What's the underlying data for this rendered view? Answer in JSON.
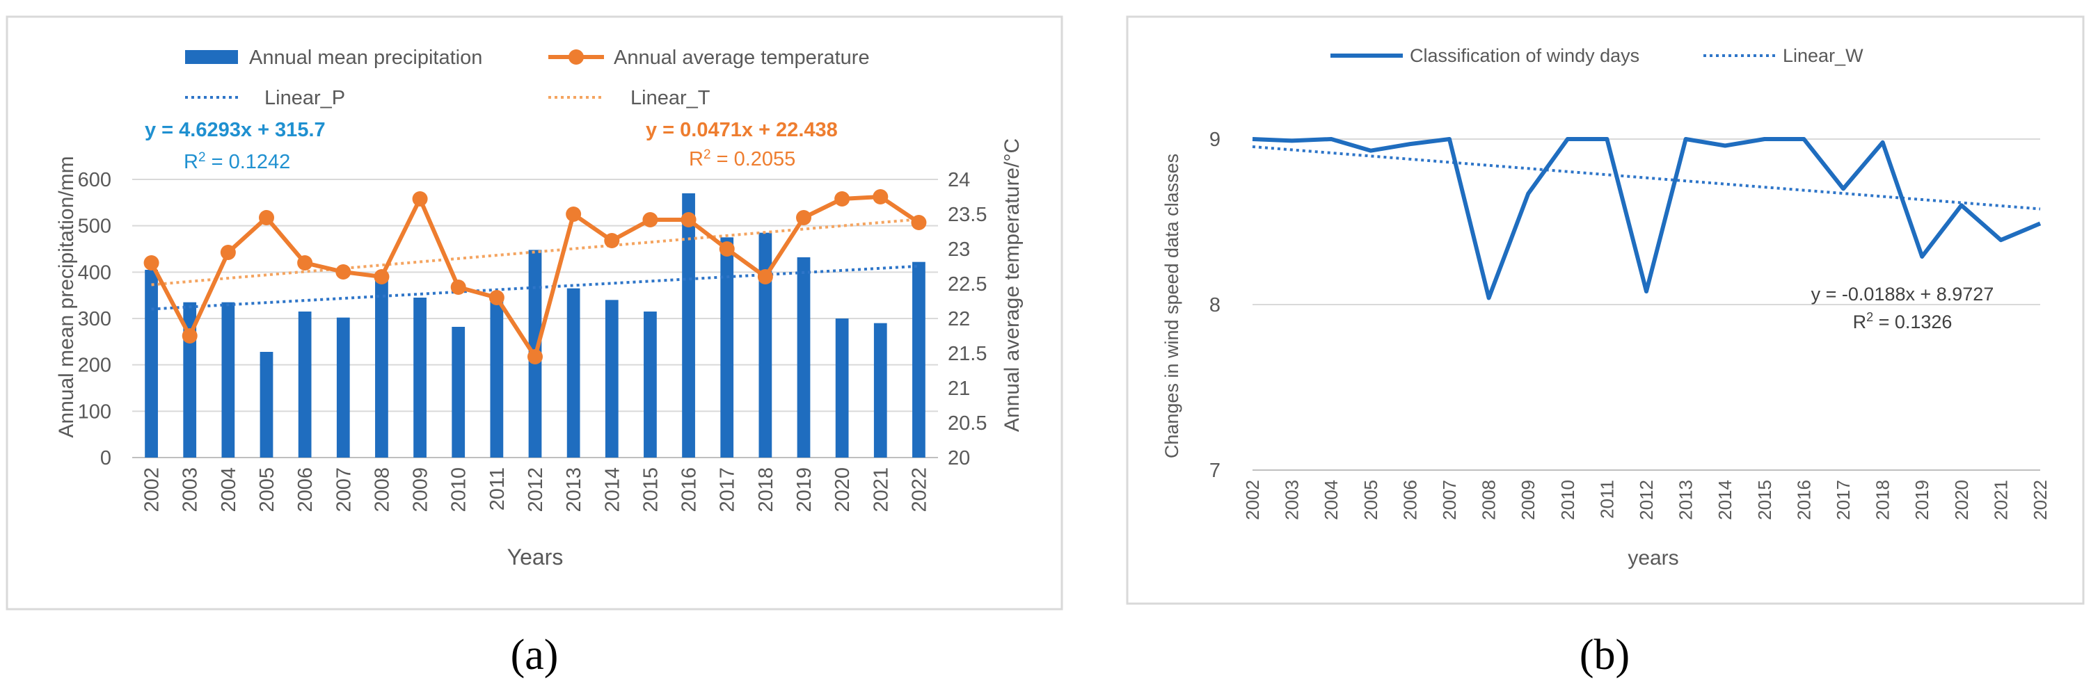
{
  "chart_data": [
    {
      "panel_label": "(a)",
      "type": "bar",
      "x": [
        "2002",
        "2003",
        "2004",
        "2005",
        "2006",
        "2007",
        "2008",
        "2009",
        "2010",
        "2011",
        "2012",
        "2013",
        "2014",
        "2015",
        "2016",
        "2017",
        "2018",
        "2019",
        "2020",
        "2021",
        "2022"
      ],
      "xlabel": "Years",
      "ylabel_left": "Annual mean precipitation/mm",
      "ylabel_right": "Annual average temperature/°C",
      "ylim_left": [
        0,
        600
      ],
      "yticks_left": [
        "0",
        "100",
        "200",
        "300",
        "400",
        "500",
        "600"
      ],
      "ylim_right": [
        20,
        24
      ],
      "yticks_right": [
        "20",
        "20.5",
        "21",
        "21.5",
        "22",
        "22.5",
        "23",
        "23.5",
        "24"
      ],
      "grid": true,
      "legend_position": "top",
      "series": [
        {
          "name": "Annual mean precipitation",
          "type": "bar",
          "axis": "left",
          "color": "#1f6dbf",
          "values": [
            405,
            335,
            335,
            228,
            315,
            302,
            385,
            345,
            282,
            350,
            448,
            365,
            340,
            315,
            570,
            475,
            485,
            432,
            300,
            290,
            422
          ]
        },
        {
          "name": "Annual average temperature",
          "type": "line",
          "axis": "right",
          "color": "#ee7d2f",
          "values": [
            22.8,
            21.75,
            22.95,
            23.45,
            22.8,
            22.67,
            22.6,
            23.72,
            22.45,
            22.3,
            21.45,
            23.5,
            23.12,
            23.42,
            23.42,
            23.0,
            22.6,
            23.45,
            23.72,
            23.75,
            23.38
          ]
        },
        {
          "name": "Linear_P",
          "type": "trend",
          "axis": "left",
          "color": "#2e75c8",
          "slope": 4.6293,
          "intercept": 315.7,
          "equation": "y = 4.6293x + 315.7",
          "r2_label": "R",
          "r2_value": " = 0.1242"
        },
        {
          "name": "Linear_T",
          "type": "trend",
          "axis": "right",
          "color": "#f4a460",
          "slope": 0.0471,
          "intercept": 22.438,
          "equation": "y = 0.0471x + 22.438",
          "r2_label": "R",
          "r2_value": " = 0.2055"
        }
      ]
    },
    {
      "panel_label": "(b)",
      "type": "line",
      "x": [
        "2002",
        "2003",
        "2004",
        "2005",
        "2006",
        "2007",
        "2008",
        "2009",
        "2010",
        "2011",
        "2012",
        "2013",
        "2014",
        "2015",
        "2016",
        "2017",
        "2018",
        "2019",
        "2020",
        "2021",
        "2022"
      ],
      "xlabel": "years",
      "ylabel": "Changes in wind speed data classes",
      "ylim": [
        7,
        9
      ],
      "yticks": [
        "7",
        "8",
        "9"
      ],
      "grid": true,
      "legend_position": "top",
      "series": [
        {
          "name": "Classification of windy days",
          "type": "line",
          "color": "#1f6dbf",
          "values": [
            9.0,
            8.99,
            9.0,
            8.93,
            8.97,
            9.0,
            8.04,
            8.67,
            9.0,
            9.0,
            8.08,
            9.0,
            8.96,
            9.0,
            9.0,
            8.7,
            8.98,
            8.29,
            8.6,
            8.39,
            8.49
          ]
        },
        {
          "name": "Linear_W",
          "type": "trend",
          "color": "#2e75c8",
          "slope": -0.0188,
          "intercept": 8.9727,
          "equation": "y = -0.0188x + 8.9727",
          "r2_label": "R",
          "r2_value": " = 0.1326"
        }
      ]
    }
  ]
}
